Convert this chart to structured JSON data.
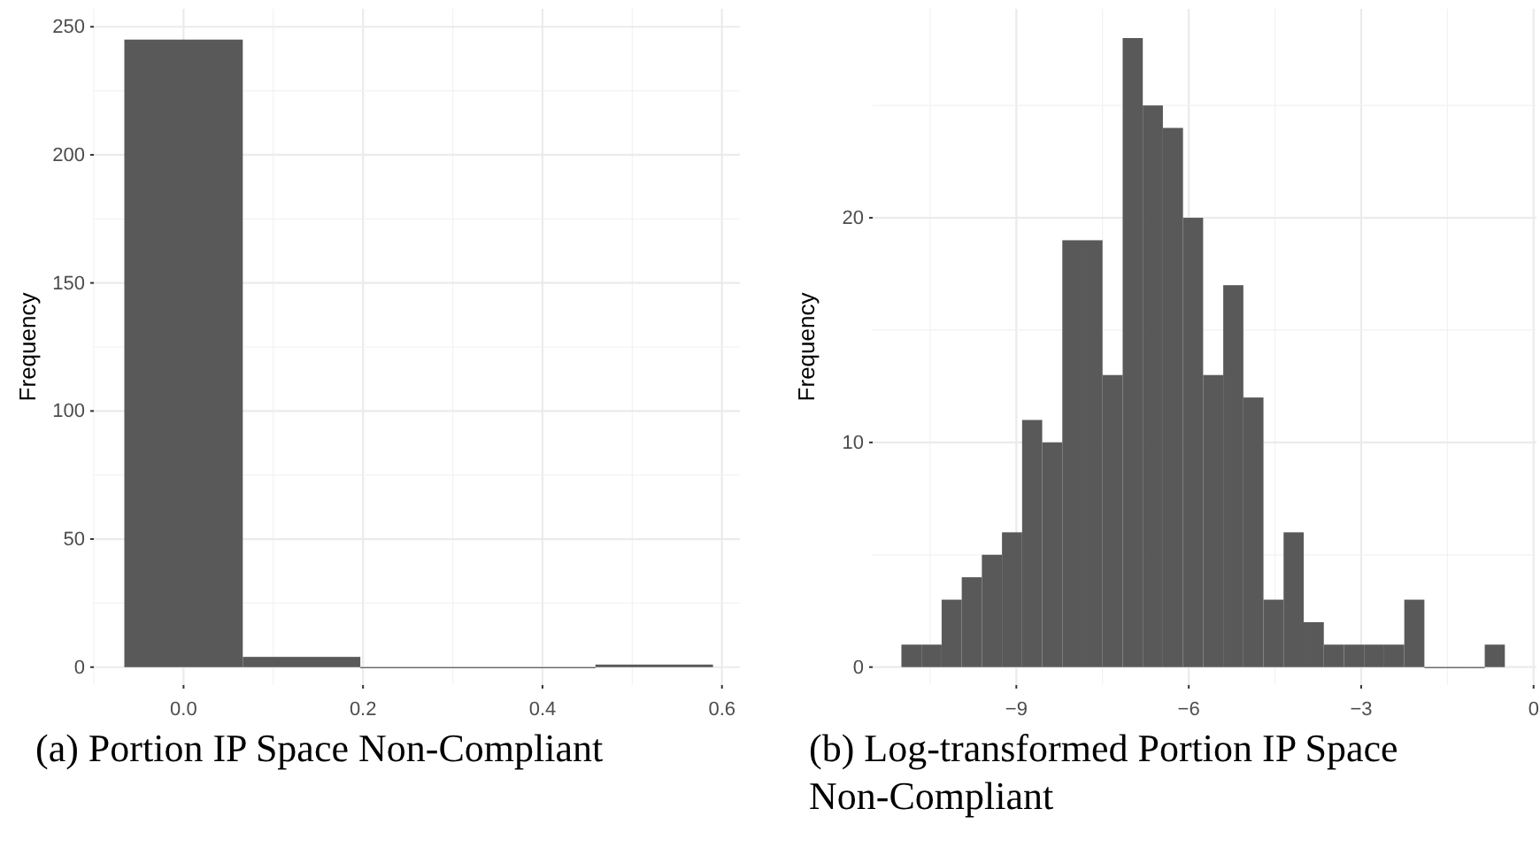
{
  "chart_data": [
    {
      "type": "histogram",
      "title": "(a) Portion IP Space Non-Compliant",
      "ylabel": "Frequency",
      "bins": [
        -0.066,
        0.066,
        0.197,
        0.328,
        0.459,
        0.59
      ],
      "values": [
        245,
        4,
        0,
        0,
        1
      ],
      "color": "#595959",
      "xlim": [
        -0.1,
        0.62
      ],
      "ylim": [
        -7,
        257
      ],
      "xticks": [
        {
          "value": 0,
          "label": "0.0"
        },
        0.2,
        0.4,
        0.6
      ],
      "yticks": [
        0,
        50,
        100,
        150,
        200,
        250
      ],
      "grid": true
    },
    {
      "type": "histogram",
      "title": "(b) Log-transformed Portion IP Space Non-Compliant",
      "ylabel": "Frequency",
      "bins": [
        -11,
        -10.65,
        -10.3,
        -9.95,
        -9.6,
        -9.25,
        -8.9,
        -8.55,
        -8.2,
        -7.85,
        -7.5,
        -7.15,
        -6.8,
        -6.45,
        -6.1,
        -5.75,
        -5.4,
        -5.05,
        -4.7,
        -4.35,
        -4,
        -3.65,
        -3.3,
        -2.95,
        -2.6,
        -2.25,
        -1.9,
        -1.55,
        -1.2,
        -0.85,
        -0.5
      ],
      "values": [
        1,
        1,
        3,
        4,
        5,
        6,
        11,
        10,
        19,
        19,
        13,
        28,
        25,
        24,
        20,
        13,
        17,
        12,
        3,
        6,
        2,
        1,
        1,
        1,
        1,
        3,
        0,
        0,
        0,
        1
      ],
      "color": "#595959",
      "xlim": [
        -11.5,
        0.05
      ],
      "ylim": [
        -0.8,
        29.3
      ],
      "xticks": [
        {
          "value": -9,
          "label": "−9"
        },
        {
          "value": -6,
          "label": "−6"
        },
        {
          "value": -3,
          "label": "−3"
        },
        0
      ],
      "yticks": [
        0,
        10,
        20
      ],
      "grid": true
    }
  ]
}
